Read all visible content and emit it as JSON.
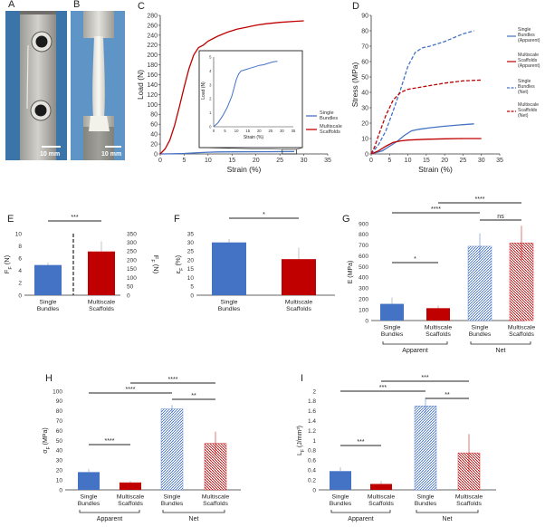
{
  "colors": {
    "single": "#4472c4",
    "multi": "#c00000",
    "axis": "#333333",
    "photo_bg_a": "#3b74a8",
    "photo_bg_b": "#5f95c6"
  },
  "panels": {
    "A": {
      "label": "A",
      "scale_bar": "10 mm"
    },
    "B": {
      "label": "B",
      "scale_bar": "10 mm"
    },
    "C": {
      "label": "C"
    },
    "D": {
      "label": "D"
    },
    "E": {
      "label": "E"
    },
    "F": {
      "label": "F"
    },
    "G": {
      "label": "G"
    },
    "H": {
      "label": "H"
    },
    "I": {
      "label": "I"
    }
  },
  "group_labels": {
    "apparent": "Apparent",
    "net": "Net"
  },
  "chart_data": [
    {
      "id": "C",
      "type": "line",
      "xlabel": "Strain (%)",
      "ylabel": "Load (N)",
      "xlim": [
        0,
        35
      ],
      "ylim": [
        0,
        280
      ],
      "xticks": [
        0,
        5,
        10,
        15,
        20,
        25,
        30,
        35
      ],
      "yticks": [
        0,
        20,
        40,
        60,
        80,
        100,
        120,
        140,
        160,
        180,
        200,
        220,
        240,
        260,
        280
      ],
      "series": [
        {
          "name": "Single Bundles",
          "color": "#4472c4",
          "dash": false,
          "x": [
            0,
            2,
            5,
            8,
            10,
            12,
            15,
            20,
            25,
            28
          ],
          "y": [
            0,
            0.2,
            1,
            2.5,
            3.5,
            4,
            4.2,
            4.4,
            4.6,
            4.7
          ]
        },
        {
          "name": "Multiscale Scaffolds",
          "color": "#c00000",
          "dash": false,
          "x": [
            0,
            1,
            2,
            3,
            4,
            5,
            6,
            7,
            8,
            9,
            10,
            12,
            14,
            16,
            18,
            20,
            22,
            25,
            28,
            30
          ],
          "y": [
            0,
            10,
            28,
            58,
            95,
            135,
            172,
            200,
            215,
            220,
            228,
            238,
            246,
            252,
            256,
            260,
            263,
            266,
            268,
            269
          ]
        }
      ],
      "legend": [
        "Single Bundles",
        "Multiscale Scaffolds"
      ],
      "inset": {
        "xlabel": "Strain (%)",
        "ylabel": "Load (N)",
        "xlim": [
          0,
          35
        ],
        "ylim": [
          0,
          5
        ],
        "xticks": [
          0,
          5,
          10,
          15,
          20,
          25,
          30,
          35
        ],
        "yticks": [
          0,
          1,
          2,
          3,
          4,
          5
        ],
        "x": [
          0,
          2,
          4,
          6,
          8,
          9,
          10,
          11,
          12,
          14,
          16,
          18,
          20,
          22,
          24,
          26,
          28
        ],
        "y": [
          0,
          0.3,
          0.8,
          1.4,
          2.2,
          2.8,
          3.4,
          3.8,
          4.0,
          4.1,
          4.2,
          4.3,
          4.4,
          4.45,
          4.55,
          4.65,
          4.7
        ]
      }
    },
    {
      "id": "D",
      "type": "line",
      "xlabel": "Strain (%)",
      "ylabel": "Stress (MPa)",
      "xlim": [
        0,
        35
      ],
      "ylim": [
        0,
        90
      ],
      "xticks": [
        0,
        5,
        10,
        15,
        20,
        25,
        30,
        35
      ],
      "yticks": [
        0,
        10,
        20,
        30,
        40,
        50,
        60,
        70,
        80,
        90
      ],
      "series": [
        {
          "name": "Single Bundles (Apparent)",
          "color": "#4472c4",
          "dash": false,
          "x": [
            0,
            3,
            5,
            7,
            9,
            11,
            13,
            16,
            20,
            25,
            28
          ],
          "y": [
            0,
            2,
            5,
            8,
            12,
            15,
            16,
            17,
            18,
            19,
            19.5
          ]
        },
        {
          "name": "Multiscale Scaffolds (Apparent)",
          "color": "#c00000",
          "dash": false,
          "x": [
            0,
            2,
            4,
            6,
            8,
            10,
            15,
            20,
            25,
            30
          ],
          "y": [
            0,
            2,
            5,
            7.5,
            8.5,
            9,
            9.5,
            9.8,
            10,
            10
          ]
        },
        {
          "name": "Single Bundles (Net)",
          "color": "#4472c4",
          "dash": true,
          "x": [
            0,
            2,
            4,
            6,
            8,
            10,
            12,
            14,
            16,
            20,
            25,
            28
          ],
          "y": [
            0,
            6,
            15,
            28,
            42,
            57,
            66,
            69,
            70,
            73,
            78,
            80
          ]
        },
        {
          "name": "Multiscale Scaffolds (Net)",
          "color": "#c00000",
          "dash": true,
          "x": [
            0,
            1,
            2,
            4,
            6,
            8,
            10,
            15,
            20,
            25,
            30
          ],
          "y": [
            0,
            5,
            12,
            25,
            35,
            40,
            42,
            44,
            46,
            47.5,
            48
          ]
        }
      ],
      "legend": [
        "Single Bundles (Apparent)",
        "Multiscale Scaffolds (Apparent)",
        "Single Bundles (Net)",
        "Multiscale Scaffolds (Net)"
      ]
    },
    {
      "id": "E",
      "type": "bar",
      "categories": [
        "Single Bundles",
        "Multiscale Scaffolds"
      ],
      "values": [
        4.9,
        7.1
      ],
      "errors": [
        0.4,
        1.6
      ],
      "colors": [
        "#4472c4",
        "#c00000"
      ],
      "ylabel": "F_F (N)",
      "ylim": [
        0,
        10
      ],
      "yticks": [
        0,
        2,
        4,
        6,
        8,
        10
      ],
      "y2label": "F_F (N)",
      "y2lim": [
        0,
        350
      ],
      "y2ticks": [
        0,
        50,
        100,
        150,
        200,
        250,
        300,
        350
      ],
      "significance": [
        {
          "from": 0,
          "to": 1,
          "label": "***"
        }
      ]
    },
    {
      "id": "F",
      "type": "bar",
      "categories": [
        "Single Bundles",
        "Multiscale Scaffolds"
      ],
      "values": [
        30,
        20.5
      ],
      "errors": [
        2,
        6.5
      ],
      "colors": [
        "#4472c4",
        "#c00000"
      ],
      "ylabel": "ε_F (%)",
      "ylim": [
        0,
        35
      ],
      "yticks": [
        0,
        5,
        10,
        15,
        20,
        25,
        30,
        35
      ],
      "significance": [
        {
          "from": 0,
          "to": 1,
          "label": "*"
        }
      ]
    },
    {
      "id": "G",
      "type": "bar",
      "categories": [
        "Single Bundles",
        "Multiscale Scaffolds",
        "Single Bundles",
        "Multiscale Scaffolds"
      ],
      "values": [
        155,
        115,
        690,
        720
      ],
      "errors": [
        60,
        25,
        120,
        160
      ],
      "colors": [
        "#4472c4",
        "#c00000",
        "#4472c4",
        "#c00000"
      ],
      "hatched": [
        false,
        false,
        true,
        true
      ],
      "ylabel": "E (MPa)",
      "ylim": [
        0,
        900
      ],
      "yticks": [
        0,
        100,
        200,
        300,
        400,
        500,
        600,
        700,
        800,
        900
      ],
      "significance": [
        {
          "from": 0,
          "to": 1,
          "label": "*"
        },
        {
          "from": 2,
          "to": 3,
          "label": "ns"
        },
        {
          "from": 0,
          "to": 2,
          "label": "****"
        },
        {
          "from": 1,
          "to": 3,
          "label": "****"
        }
      ]
    },
    {
      "id": "H",
      "type": "bar",
      "categories": [
        "Single Bundles",
        "Multiscale Scaffolds",
        "Single Bundles",
        "Multiscale Scaffolds"
      ],
      "values": [
        18,
        7.5,
        82,
        47
      ],
      "errors": [
        3,
        1.5,
        4,
        12
      ],
      "colors": [
        "#4472c4",
        "#c00000",
        "#4472c4",
        "#c00000"
      ],
      "hatched": [
        false,
        false,
        true,
        true
      ],
      "ylabel": "σ_F (MPa)",
      "ylim": [
        0,
        100
      ],
      "yticks": [
        0,
        10,
        20,
        30,
        40,
        50,
        60,
        70,
        80,
        90,
        100
      ],
      "significance": [
        {
          "from": 0,
          "to": 1,
          "label": "****"
        },
        {
          "from": 2,
          "to": 3,
          "label": "**"
        },
        {
          "from": 0,
          "to": 2,
          "label": "****"
        },
        {
          "from": 1,
          "to": 3,
          "label": "****"
        }
      ]
    },
    {
      "id": "I",
      "type": "bar",
      "categories": [
        "Single Bundles",
        "Multiscale Scaffolds",
        "Single Bundles",
        "Multiscale Scaffolds"
      ],
      "values": [
        0.38,
        0.12,
        1.7,
        0.75
      ],
      "errors": [
        0.08,
        0.06,
        0.17,
        0.38
      ],
      "colors": [
        "#4472c4",
        "#c00000",
        "#4472c4",
        "#c00000"
      ],
      "hatched": [
        false,
        false,
        true,
        true
      ],
      "ylabel": "L_F (J/mm³)",
      "ylim": [
        0,
        2
      ],
      "yticks": [
        0,
        0.2,
        0.4,
        0.6,
        0.8,
        1,
        1.2,
        1.4,
        1.6,
        1.8,
        2
      ],
      "significance": [
        {
          "from": 0,
          "to": 1,
          "label": "***"
        },
        {
          "from": 2,
          "to": 3,
          "label": "**"
        },
        {
          "from": 0,
          "to": 2,
          "label": "***"
        },
        {
          "from": 1,
          "to": 3,
          "label": "***"
        }
      ]
    }
  ]
}
